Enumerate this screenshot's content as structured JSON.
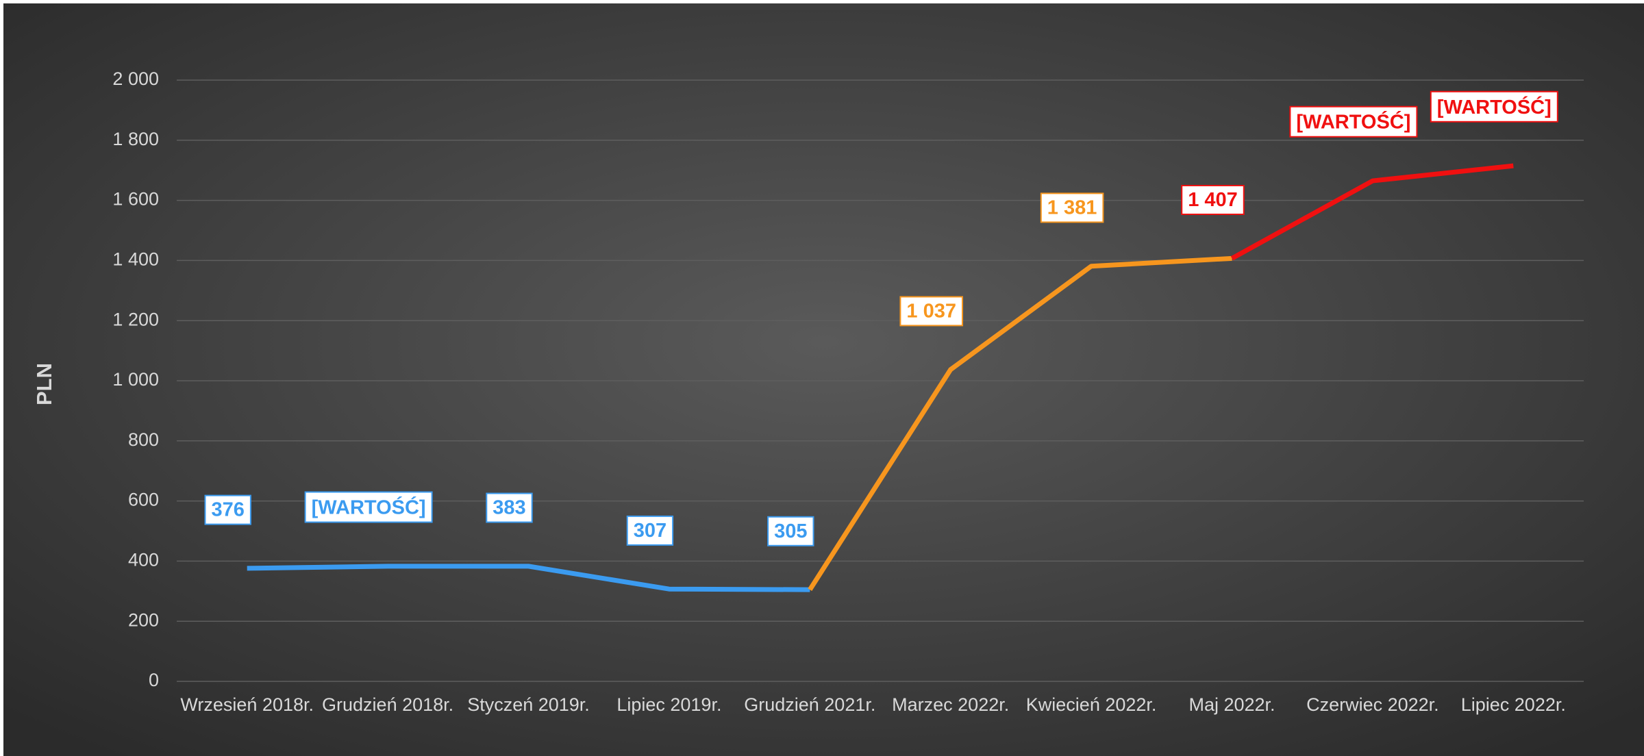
{
  "chart_data": {
    "type": "line",
    "y_label": "PLN",
    "categories": [
      "Wrzesień 2018r.",
      "Grudzień 2018r.",
      "Styczeń 2019r.",
      "Lipiec 2019r.",
      "Grudzień 2021r.",
      "Marzec 2022r.",
      "Kwiecień 2022r.",
      "Maj 2022r.",
      "Czerwiec 2022r.",
      "Lipiec 2022r."
    ],
    "series": [
      {
        "color": "#3b9bf0",
        "values": [
          376,
          383,
          383,
          307,
          305,
          null,
          null,
          null,
          null,
          null
        ],
        "value_labels": [
          "376",
          "[WARTOŚĆ]",
          "383",
          "307",
          "305",
          null,
          null,
          null,
          null,
          null
        ]
      },
      {
        "color": "#f7961e",
        "values": [
          null,
          null,
          null,
          null,
          305,
          1037,
          1381,
          1407,
          null,
          null
        ],
        "value_labels": [
          null,
          null,
          null,
          null,
          null,
          "1 037",
          "1 381",
          null,
          null,
          null
        ]
      },
      {
        "color": "#f01010",
        "values": [
          null,
          null,
          null,
          null,
          null,
          null,
          null,
          1407,
          1665,
          1715
        ],
        "value_labels": [
          null,
          null,
          null,
          null,
          null,
          null,
          null,
          "1 407",
          "[WARTOŚĆ]",
          "[WARTOŚĆ]"
        ]
      }
    ],
    "ylim": [
      0,
      2000
    ],
    "yticks": [
      0,
      200,
      400,
      600,
      800,
      {
        "value": 1000,
        "label": "1 000"
      },
      {
        "value": 1200,
        "label": "1 200"
      },
      {
        "value": 1400,
        "label": "1 400"
      },
      {
        "value": 1600,
        "label": "1 600"
      },
      {
        "value": 1800,
        "label": "1 800"
      },
      {
        "value": 2000,
        "label": "2 000"
      }
    ],
    "grid": true
  }
}
